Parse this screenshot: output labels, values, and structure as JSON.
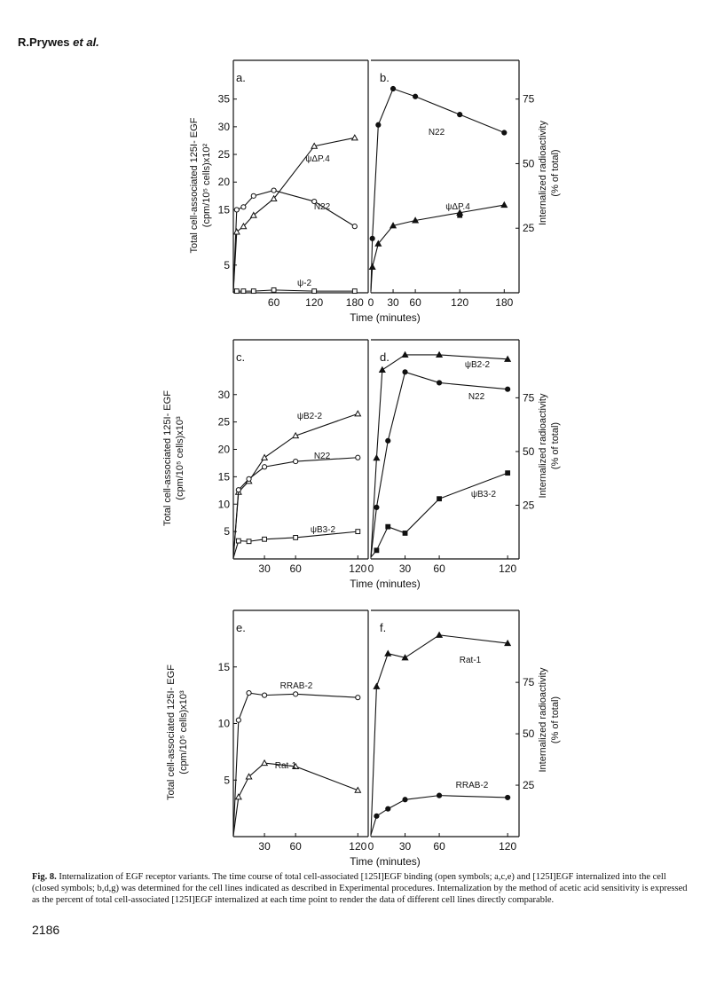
{
  "header": {
    "author": "R.Prywes",
    "etal": "et al."
  },
  "caption": {
    "label": "Fig. 8.",
    "text": "Internalization of EGF receptor variants. The time course of total cell-associated [125I]EGF binding (open symbols; a,c,e) and [125I]EGF internalized into the cell (closed symbols; b,d,g) was determined for the cell lines indicated as described in Experimental procedures. Internalization by the method of acetic acid sensitivity is expressed as the percent of total cell-associated [125I]EGF internalized at each time point to render the data of different cell lines directly comparable."
  },
  "page_number": "2186",
  "chart_data": [
    {
      "type": "line",
      "panel_label": "a.",
      "side": "left",
      "ylabel": "Total cell-associated 125I- EGF (cpm/10⁵ cells)x10²",
      "xlabel": "Time (minutes)",
      "xlim": [
        0,
        200
      ],
      "ylim": [
        0,
        42
      ],
      "xticks": [
        60,
        120,
        180
      ],
      "yticks": [
        5,
        15,
        20,
        25,
        30,
        35
      ],
      "series": [
        {
          "name": "N22",
          "marker": "open-circle",
          "x": [
            5,
            15,
            30,
            60,
            120,
            180
          ],
          "y": [
            15,
            15.5,
            17.5,
            18.5,
            16.5,
            12
          ]
        },
        {
          "name": "ψΔP.4",
          "marker": "open-triangle",
          "x": [
            5,
            15,
            30,
            60,
            120,
            180
          ],
          "y": [
            11,
            12,
            14,
            17,
            26.5,
            28
          ]
        },
        {
          "name": "ψ-2",
          "marker": "open-square",
          "x": [
            5,
            15,
            30,
            60,
            120,
            180
          ],
          "y": [
            0.3,
            0.3,
            0.3,
            0.5,
            0.3,
            0.3
          ]
        }
      ]
    },
    {
      "type": "line",
      "panel_label": "b.",
      "side": "right",
      "ylabel": "Internalized radioactivity (% of total)",
      "xlabel": "",
      "xlim": [
        0,
        200
      ],
      "ylim": [
        0,
        90
      ],
      "xticks": [
        0,
        30,
        60,
        120,
        180
      ],
      "yticks": [
        25,
        50,
        75
      ],
      "series": [
        {
          "name": "N22",
          "marker": "filled-circle",
          "x": [
            2,
            10,
            30,
            60,
            120,
            180
          ],
          "y": [
            21,
            65,
            79,
            76,
            69,
            62
          ]
        },
        {
          "name": "ψΔP.4",
          "marker": "filled-triangle",
          "x": [
            2,
            10,
            30,
            60,
            120,
            180
          ],
          "y": [
            10,
            19,
            26,
            28,
            31,
            34
          ]
        },
        {
          "name": "",
          "marker": "filled-square",
          "x": [
            120
          ],
          "y": [
            30
          ]
        }
      ]
    },
    {
      "type": "line",
      "panel_label": "c.",
      "side": "left",
      "ylabel": "Total cell-associated 125I- EGF (cpm/10⁵ cells)x10³",
      "xlabel": "Time (minutes)",
      "xlim": [
        0,
        130
      ],
      "ylim": [
        0,
        40
      ],
      "xticks": [
        30,
        60,
        120
      ],
      "yticks": [
        5,
        10,
        15,
        20,
        25,
        30
      ],
      "series": [
        {
          "name": "ψB2-2",
          "marker": "open-triangle",
          "x": [
            5,
            15,
            30,
            60,
            120
          ],
          "y": [
            12.2,
            14.2,
            18.5,
            22.5,
            26.5
          ]
        },
        {
          "name": "N22",
          "marker": "open-circle",
          "x": [
            5,
            15,
            30,
            60,
            120
          ],
          "y": [
            12.6,
            14.6,
            16.8,
            17.8,
            18.5
          ]
        },
        {
          "name": "ψB3-2",
          "marker": "open-square",
          "x": [
            5,
            15,
            30,
            60,
            120
          ],
          "y": [
            3.3,
            3.2,
            3.6,
            3.9,
            5
          ]
        }
      ]
    },
    {
      "type": "line",
      "panel_label": "d.",
      "side": "right",
      "ylabel": "Internalized radioactivity (% of total)",
      "xlabel": "",
      "xlim": [
        0,
        130
      ],
      "ylim": [
        0,
        102
      ],
      "xticks": [
        0,
        30,
        60,
        120
      ],
      "yticks": [
        25,
        50,
        75
      ],
      "series": [
        {
          "name": "ψB2-2",
          "marker": "filled-triangle",
          "x": [
            5,
            10,
            30,
            60,
            120
          ],
          "y": [
            47,
            88,
            95,
            95,
            93
          ]
        },
        {
          "name": "N22",
          "marker": "filled-circle",
          "x": [
            5,
            15,
            30,
            60,
            120
          ],
          "y": [
            24,
            55,
            87,
            82,
            79
          ]
        },
        {
          "name": "ψB3-2",
          "marker": "filled-square",
          "x": [
            5,
            15,
            30,
            60,
            120
          ],
          "y": [
            4,
            15,
            12,
            28,
            40
          ]
        }
      ]
    },
    {
      "type": "line",
      "panel_label": "e.",
      "side": "left",
      "ylabel": "Total cell-associated 125I- EGF (cpm/10⁵ cells)x10³",
      "xlabel": "Time (minutes)",
      "xlim": [
        0,
        130
      ],
      "ylim": [
        0,
        20
      ],
      "xticks": [
        30,
        60,
        120
      ],
      "yticks": [
        5,
        10,
        15
      ],
      "series": [
        {
          "name": "RRAB-2",
          "marker": "open-circle",
          "x": [
            5,
            15,
            30,
            60,
            120
          ],
          "y": [
            10.3,
            12.7,
            12.5,
            12.6,
            12.3
          ]
        },
        {
          "name": "Rat-1",
          "marker": "open-triangle",
          "x": [
            5,
            15,
            30,
            60,
            120
          ],
          "y": [
            3.5,
            5.3,
            6.5,
            6.2,
            4.1
          ]
        }
      ]
    },
    {
      "type": "line",
      "panel_label": "f.",
      "side": "right",
      "ylabel": "Internalized radioactivity (% of total)",
      "xlabel": "",
      "xlim": [
        0,
        130
      ],
      "ylim": [
        0,
        110
      ],
      "xticks": [
        0,
        30,
        60,
        120
      ],
      "yticks": [
        25,
        50,
        75
      ],
      "series": [
        {
          "name": "Rat-1",
          "marker": "filled-triangle",
          "x": [
            5,
            15,
            30,
            60,
            120
          ],
          "y": [
            73,
            89,
            87,
            98,
            94
          ]
        },
        {
          "name": "RRAB-2",
          "marker": "filled-circle",
          "x": [
            5,
            15,
            30,
            60,
            120
          ],
          "y": [
            10,
            13.5,
            18,
            20,
            19
          ]
        }
      ]
    }
  ]
}
